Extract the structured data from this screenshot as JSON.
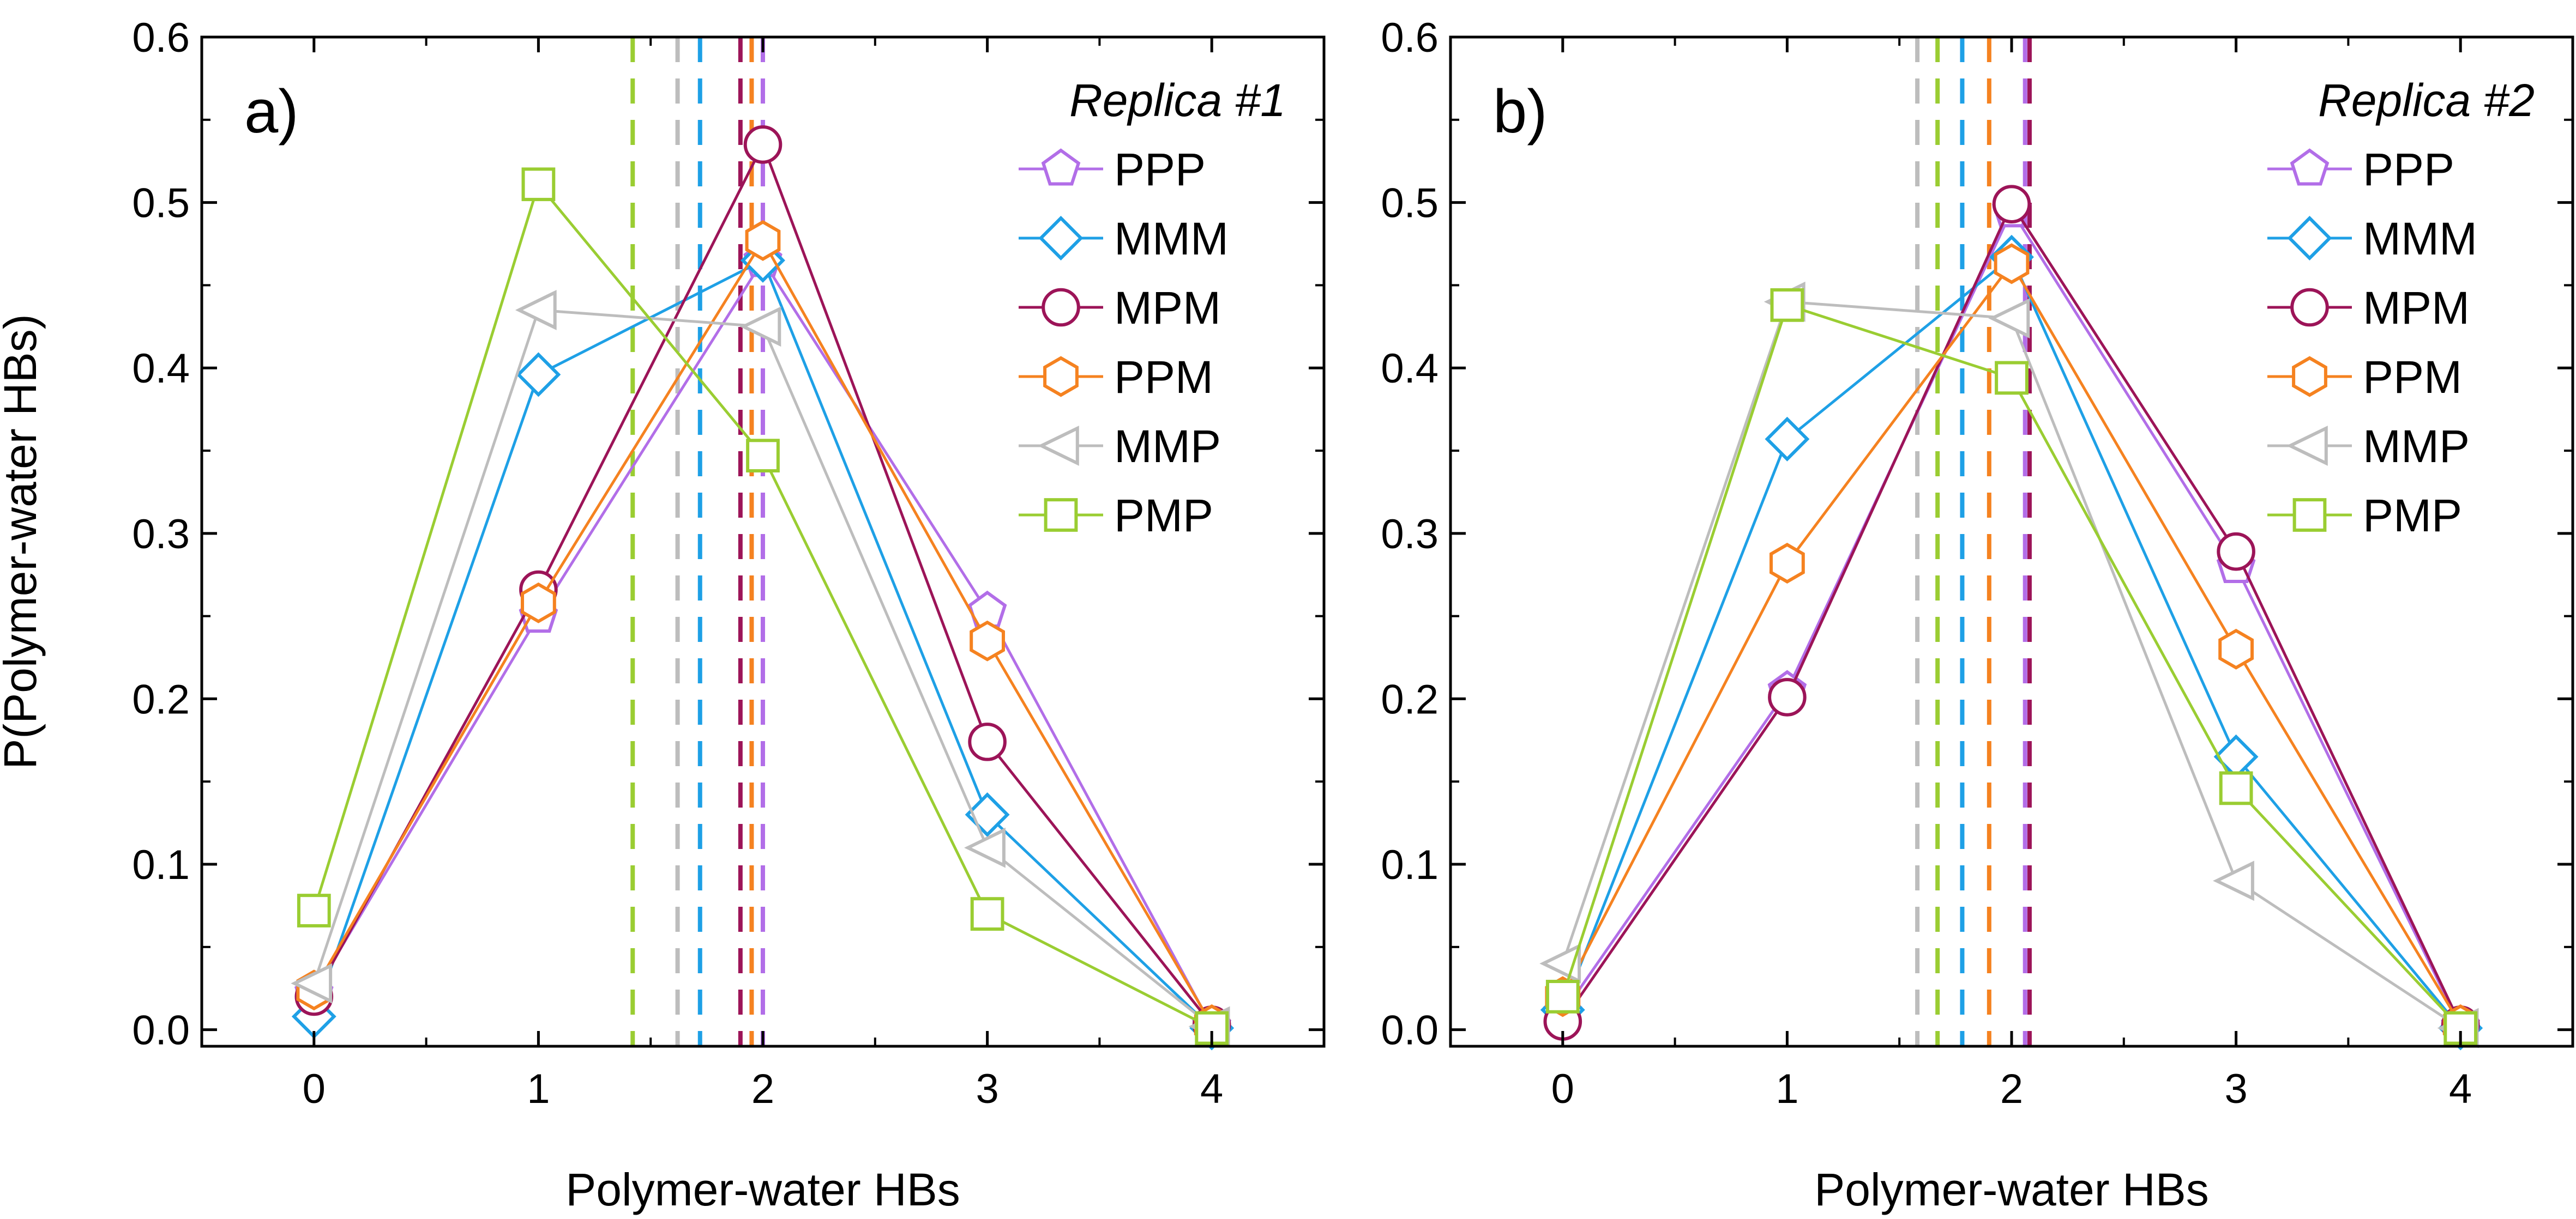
{
  "chart_data": [
    {
      "type": "line",
      "panel_label": "a)",
      "legend_title": "Replica #1",
      "xlabel": "Polymer-water HBs",
      "ylabel": "P(Polymer-water HBs)",
      "xlim": [
        -0.5,
        4.5
      ],
      "ylim": [
        -0.01,
        0.6
      ],
      "x": [
        0,
        1,
        2,
        3,
        4
      ],
      "x_ticks": [
        "0",
        "1",
        "2",
        "3",
        "4"
      ],
      "y_ticks": [
        "0.0",
        "0.1",
        "0.2",
        "0.3",
        "0.4",
        "0.5",
        "0.6"
      ],
      "grid": false,
      "legend_position": "top-right",
      "series": [
        {
          "name": "PPP",
          "marker": "pentagon",
          "color": "#B26EE8",
          "values": [
            0.022,
            0.25,
            0.465,
            0.253,
            0.002
          ],
          "mean": 2.0
        },
        {
          "name": "MMM",
          "marker": "diamond",
          "color": "#1EA0E6",
          "values": [
            0.008,
            0.396,
            0.465,
            0.13,
            0.001
          ],
          "mean": 1.72
        },
        {
          "name": "MPM",
          "marker": "circle",
          "color": "#9C1458",
          "values": [
            0.02,
            0.266,
            0.535,
            0.174,
            0.003
          ],
          "mean": 1.9
        },
        {
          "name": "PPM",
          "marker": "hexagon",
          "color": "#F58220",
          "values": [
            0.024,
            0.258,
            0.477,
            0.235,
            0.003
          ],
          "mean": 1.95
        },
        {
          "name": "MMP",
          "marker": "triangle-left",
          "color": "#BDBDBD",
          "values": [
            0.028,
            0.435,
            0.425,
            0.11,
            0.002
          ],
          "mean": 1.62
        },
        {
          "name": "PMP",
          "marker": "square",
          "color": "#9ACD32",
          "values": [
            0.072,
            0.511,
            0.347,
            0.07,
            0.001
          ],
          "mean": 1.42
        }
      ]
    },
    {
      "type": "line",
      "panel_label": "b)",
      "legend_title": "Replica #2",
      "xlabel": "Polymer-water HBs",
      "ylabel": "",
      "xlim": [
        -0.5,
        4.5
      ],
      "ylim": [
        -0.01,
        0.6
      ],
      "x": [
        0,
        1,
        2,
        3,
        4
      ],
      "x_ticks": [
        "0",
        "1",
        "2",
        "3",
        "4"
      ],
      "y_ticks": [
        "0.0",
        "0.1",
        "0.2",
        "0.3",
        "0.4",
        "0.5",
        "0.6"
      ],
      "grid": false,
      "legend_position": "top-right",
      "series": [
        {
          "name": "PPP",
          "marker": "pentagon",
          "color": "#B26EE8",
          "values": [
            0.01,
            0.205,
            0.495,
            0.28,
            0.002
          ],
          "mean": 2.06
        },
        {
          "name": "MMM",
          "marker": "diamond",
          "color": "#1EA0E6",
          "values": [
            0.012,
            0.357,
            0.467,
            0.165,
            0.001
          ],
          "mean": 1.78
        },
        {
          "name": "MPM",
          "marker": "circle",
          "color": "#9C1458",
          "values": [
            0.005,
            0.201,
            0.499,
            0.289,
            0.003
          ],
          "mean": 2.08
        },
        {
          "name": "PPM",
          "marker": "hexagon",
          "color": "#F58220",
          "values": [
            0.02,
            0.282,
            0.463,
            0.23,
            0.003
          ],
          "mean": 1.9
        },
        {
          "name": "MMP",
          "marker": "triangle-left",
          "color": "#BDBDBD",
          "values": [
            0.04,
            0.44,
            0.43,
            0.09,
            0.001
          ],
          "mean": 1.58
        },
        {
          "name": "PMP",
          "marker": "square",
          "color": "#9ACD32",
          "values": [
            0.02,
            0.438,
            0.394,
            0.146,
            0.001
          ],
          "mean": 1.67
        }
      ]
    }
  ]
}
